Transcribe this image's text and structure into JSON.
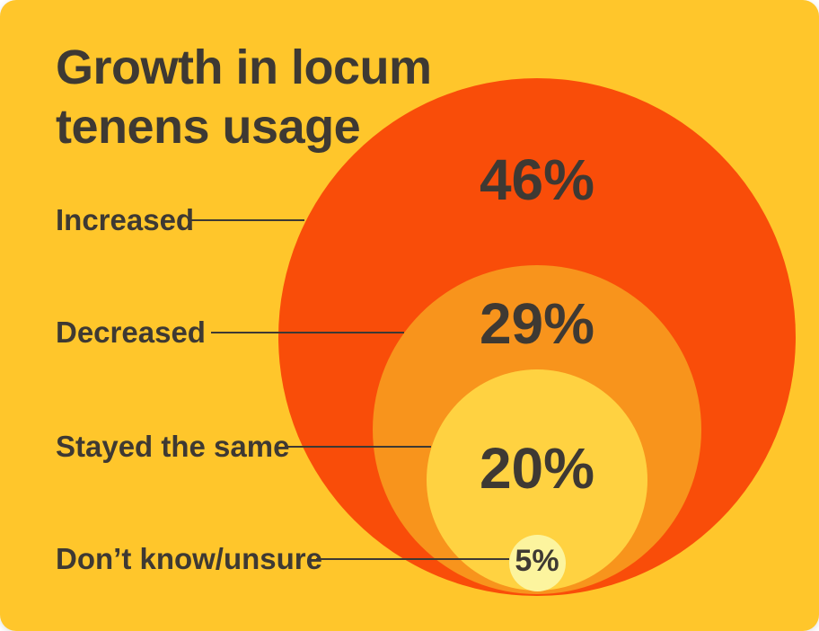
{
  "card": {
    "title": "Growth in locum\ntenens usage"
  },
  "chart_data": {
    "type": "bubble",
    "variant": "nested-concentric-circles",
    "title": "Growth in locum tenens usage",
    "categories": [
      "Increased",
      "Decreased",
      "Stayed the same",
      "Don’t know/unsure"
    ],
    "values": [
      46,
      29,
      20,
      5
    ],
    "value_labels": [
      "46%",
      "29%",
      "20%",
      "5%"
    ],
    "unit": "%",
    "colors": {
      "card_background": "#FFC62B",
      "text": "#3E3933",
      "increased_circle": "#F94D09",
      "decreased_circle": "#F8941C",
      "stayed_the_same_circle": "#FFD241",
      "dont_know_unsure_circle": "#FCF49E"
    },
    "layout_hints": {
      "arrangement": "circles nested inside one another, all tangent near common bottom point, sized by value",
      "category_labels": "left side, connected to circle edges by thin leader lines",
      "value_labels": "inside upper area of each circle",
      "legend": "none",
      "axes": "none"
    }
  }
}
